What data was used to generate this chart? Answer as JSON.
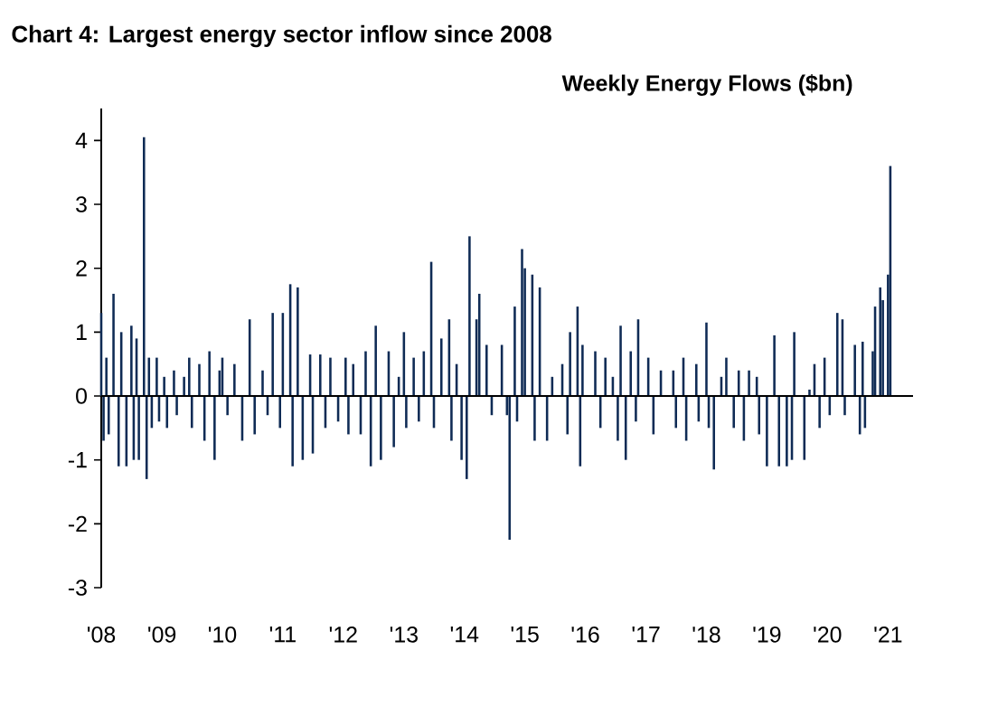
{
  "chart_data": {
    "type": "bar",
    "title": "Chart 4: Largest energy sector inflow since 2008",
    "subtitle": "Weekly Energy Flows ($bn)",
    "color": "#0f2b55",
    "x": [
      "2008-01-01",
      "2008-01-15",
      "2008-02-01",
      "2008-02-15",
      "2008-03-15",
      "2008-04-15",
      "2008-05-01",
      "2008-06-01",
      "2008-07-01",
      "2008-07-15",
      "2008-08-01",
      "2008-08-15",
      "2008-09-15",
      "2008-10-01",
      "2008-10-15",
      "2008-11-01",
      "2008-12-01",
      "2008-12-15",
      "2009-01-15",
      "2009-02-01",
      "2009-03-15",
      "2009-04-01",
      "2009-05-15",
      "2009-06-15",
      "2009-07-01",
      "2009-08-15",
      "2009-09-15",
      "2009-10-15",
      "2009-11-15",
      "2009-12-15",
      "2010-01-01",
      "2010-02-01",
      "2010-03-15",
      "2010-05-01",
      "2010-06-15",
      "2010-07-15",
      "2010-09-01",
      "2010-10-01",
      "2010-11-01",
      "2010-12-15",
      "2011-01-01",
      "2011-02-15",
      "2011-03-01",
      "2011-04-01",
      "2011-05-01",
      "2011-06-15",
      "2011-07-01",
      "2011-08-15",
      "2011-09-15",
      "2011-10-15",
      "2011-12-01",
      "2012-01-15",
      "2012-02-01",
      "2012-03-01",
      "2012-04-15",
      "2012-05-15",
      "2012-06-15",
      "2012-07-15",
      "2012-08-15",
      "2012-10-01",
      "2012-11-01",
      "2012-12-01",
      "2013-01-01",
      "2013-01-15",
      "2013-03-01",
      "2013-04-01",
      "2013-05-01",
      "2013-06-15",
      "2013-07-01",
      "2013-08-15",
      "2013-10-01",
      "2013-10-15",
      "2013-11-15",
      "2013-12-15",
      "2014-01-15",
      "2014-02-01",
      "2014-03-15",
      "2014-04-01",
      "2014-05-15",
      "2014-06-15",
      "2014-08-15",
      "2014-09-15",
      "2014-10-01",
      "2014-11-01",
      "2014-11-15",
      "2014-12-15",
      "2015-01-01",
      "2015-02-15",
      "2015-03-01",
      "2015-04-01",
      "2015-05-15",
      "2015-06-15",
      "2015-08-15",
      "2015-09-15",
      "2015-10-01",
      "2015-11-15",
      "2015-12-01",
      "2015-12-15",
      "2016-03-01",
      "2016-04-01",
      "2016-05-01",
      "2016-06-15",
      "2016-07-15",
      "2016-08-01",
      "2016-09-01",
      "2016-10-01",
      "2016-11-01",
      "2016-11-15",
      "2017-01-15",
      "2017-02-15",
      "2017-04-01",
      "2017-06-15",
      "2017-07-01",
      "2017-08-15",
      "2017-09-01",
      "2017-11-01",
      "2017-11-15",
      "2018-01-01",
      "2018-01-15",
      "2018-02-15",
      "2018-04-01",
      "2018-05-01",
      "2018-06-15",
      "2018-07-15",
      "2018-08-15",
      "2018-09-15",
      "2018-11-01",
      "2018-11-15",
      "2019-01-01",
      "2019-02-15",
      "2019-03-15",
      "2019-05-01",
      "2019-06-01",
      "2019-06-15",
      "2019-08-15",
      "2019-09-15",
      "2019-10-15",
      "2019-11-15",
      "2019-12-15",
      "2020-01-15",
      "2020-03-01",
      "2020-04-01",
      "2020-04-15",
      "2020-06-15",
      "2020-07-15",
      "2020-08-01",
      "2020-08-15",
      "2020-10-01",
      "2020-10-15",
      "2020-11-15",
      "2020-12-01",
      "2021-01-01",
      "2021-01-15"
    ],
    "values": [
      1.3,
      -0.7,
      0.6,
      -0.6,
      1.6,
      -1.1,
      1.0,
      -1.1,
      1.1,
      -1.0,
      0.9,
      -1.0,
      4.05,
      -1.3,
      0.6,
      -0.5,
      0.6,
      -0.4,
      0.3,
      -0.5,
      0.4,
      -0.3,
      0.3,
      0.6,
      -0.5,
      0.5,
      -0.7,
      0.7,
      -1.0,
      0.4,
      0.6,
      -0.3,
      0.5,
      -0.7,
      1.2,
      -0.6,
      0.4,
      -0.3,
      1.3,
      -0.5,
      1.3,
      1.75,
      -1.1,
      1.7,
      -1.0,
      0.65,
      -0.9,
      0.65,
      -0.5,
      0.6,
      -0.4,
      0.6,
      -0.6,
      0.5,
      -0.6,
      0.7,
      -1.1,
      1.1,
      -1.0,
      0.7,
      -0.8,
      0.3,
      1.0,
      -0.5,
      0.6,
      -0.4,
      0.7,
      2.1,
      -0.5,
      0.9,
      1.2,
      -0.7,
      0.5,
      -1.0,
      -1.3,
      2.5,
      1.2,
      1.6,
      0.8,
      -0.3,
      0.8,
      -0.3,
      -2.25,
      1.4,
      -0.4,
      2.3,
      2.0,
      1.9,
      -0.7,
      1.7,
      -0.7,
      0.3,
      0.5,
      -0.6,
      1.0,
      1.4,
      -1.1,
      0.8,
      0.7,
      -0.5,
      0.6,
      0.3,
      -0.7,
      1.1,
      -1.0,
      0.7,
      -0.4,
      1.2,
      0.6,
      -0.6,
      0.4,
      0.4,
      -0.5,
      0.6,
      -0.7,
      0.5,
      -0.4,
      1.15,
      -0.5,
      -1.15,
      0.3,
      0.6,
      -0.5,
      0.4,
      -0.7,
      0.4,
      0.3,
      -0.6,
      -1.1,
      0.95,
      -1.1,
      -1.1,
      -1.0,
      1.0,
      -1.0,
      0.1,
      0.5,
      -0.5,
      0.6,
      -0.3,
      1.3,
      1.2,
      -0.3,
      0.8,
      -0.6,
      0.85,
      -0.5,
      0.7,
      1.4,
      1.7,
      1.5,
      1.9,
      3.6
    ],
    "xlim": [
      "2008-01-01",
      "2021-06-01"
    ],
    "xticks": [
      {
        "value": "2008",
        "label": "'08"
      },
      {
        "value": "2009",
        "label": "'09"
      },
      {
        "value": "2010",
        "label": "'10"
      },
      {
        "value": "2011",
        "label": "'11"
      },
      {
        "value": "2012",
        "label": "'12"
      },
      {
        "value": "2013",
        "label": "'13"
      },
      {
        "value": "2014",
        "label": "'14"
      },
      {
        "value": "2015",
        "label": "'15"
      },
      {
        "value": "2016",
        "label": "'16"
      },
      {
        "value": "2017",
        "label": "'17"
      },
      {
        "value": "2018",
        "label": "'18"
      },
      {
        "value": "2019",
        "label": "'19"
      },
      {
        "value": "2020",
        "label": "'20"
      },
      {
        "value": "2021",
        "label": "'21"
      }
    ],
    "ylim": [
      -3,
      4.5
    ],
    "yticks": [
      -3,
      -2,
      -1,
      0,
      1,
      2,
      3,
      4
    ]
  }
}
